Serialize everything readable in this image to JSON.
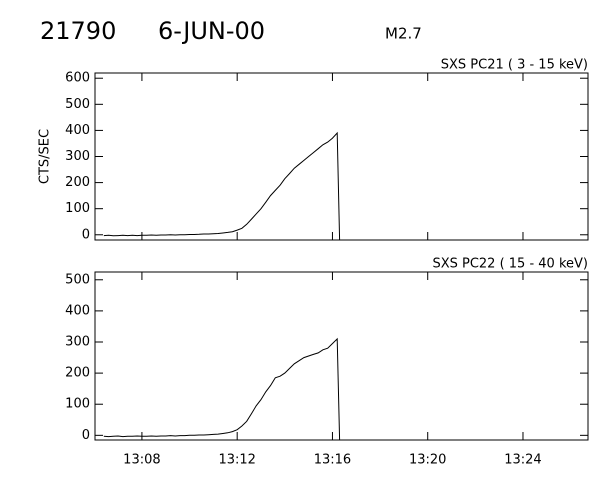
{
  "header": {
    "id": "21790",
    "date": "6-JUN-00",
    "class": "M2.7"
  },
  "chart_data": [
    {
      "type": "line",
      "title": "SXS PC21  (  3 - 15 keV)",
      "y_label": "CTS/SEC",
      "x": [
        6.4,
        6.6,
        6.8,
        7.0,
        7.2,
        7.4,
        7.6,
        7.8,
        8.0,
        8.2,
        8.4,
        8.6,
        8.8,
        9.0,
        9.2,
        9.4,
        9.6,
        9.8,
        10.0,
        10.2,
        10.4,
        10.6,
        10.8,
        11.0,
        11.2,
        11.4,
        11.6,
        11.8,
        12.0,
        12.2,
        12.4,
        12.6,
        12.8,
        13.0,
        13.2,
        13.4,
        13.6,
        13.8,
        14.0,
        14.2,
        14.4,
        14.6,
        14.8,
        15.0,
        15.2,
        15.4,
        15.6,
        15.8,
        16.0,
        16.2,
        16.3
      ],
      "series": [
        {
          "color": "#000000",
          "values": [
            -3,
            -2,
            -4,
            -3,
            -2,
            -3,
            -2,
            -3,
            -2,
            -2,
            -1,
            -2,
            -1,
            -1,
            0,
            -1,
            0,
            0,
            1,
            1,
            2,
            3,
            3,
            4,
            5,
            7,
            9,
            12,
            18,
            25,
            40,
            60,
            80,
            100,
            125,
            150,
            170,
            190,
            215,
            235,
            255,
            270,
            285,
            300,
            315,
            330,
            345,
            355,
            370,
            390,
            -20
          ]
        }
      ],
      "xlim": [
        6.03,
        26.73
      ],
      "xticks": [
        8,
        12,
        16,
        20,
        24
      ],
      "ylim": [
        -20,
        620
      ],
      "yticks": [
        0,
        100,
        200,
        300,
        400,
        500,
        600
      ]
    },
    {
      "type": "line",
      "title": "SXS PC22  ( 15 - 40 keV)",
      "x": [
        6.4,
        6.6,
        6.8,
        7.0,
        7.2,
        7.4,
        7.6,
        7.8,
        8.0,
        8.2,
        8.4,
        8.6,
        8.8,
        9.0,
        9.2,
        9.4,
        9.6,
        9.8,
        10.0,
        10.2,
        10.4,
        10.6,
        10.8,
        11.0,
        11.2,
        11.4,
        11.6,
        11.8,
        12.0,
        12.2,
        12.4,
        12.6,
        12.8,
        13.0,
        13.2,
        13.4,
        13.6,
        13.8,
        14.0,
        14.2,
        14.4,
        14.6,
        14.8,
        15.0,
        15.2,
        15.4,
        15.6,
        15.8,
        16.0,
        16.2,
        16.3
      ],
      "series": [
        {
          "color": "#000000",
          "values": [
            -3,
            -4,
            -3,
            -2,
            -4,
            -3,
            -3,
            -2,
            -3,
            -3,
            -2,
            -3,
            -2,
            -2,
            -1,
            -2,
            -1,
            -1,
            0,
            0,
            1,
            1,
            2,
            3,
            4,
            6,
            8,
            12,
            18,
            30,
            45,
            70,
            95,
            115,
            140,
            160,
            185,
            190,
            200,
            215,
            230,
            240,
            250,
            255,
            260,
            265,
            275,
            280,
            295,
            310,
            -15
          ]
        }
      ],
      "xlim": [
        6.03,
        26.73
      ],
      "xticks": [
        {
          "value": 8,
          "label": "13:08"
        },
        {
          "value": 12,
          "label": "13:12"
        },
        {
          "value": 16,
          "label": "13:16"
        },
        {
          "value": 20,
          "label": "13:20"
        },
        {
          "value": 24,
          "label": "13:24"
        }
      ],
      "ylim": [
        -15,
        525
      ],
      "yticks": [
        0,
        100,
        200,
        300,
        400,
        500
      ]
    }
  ]
}
